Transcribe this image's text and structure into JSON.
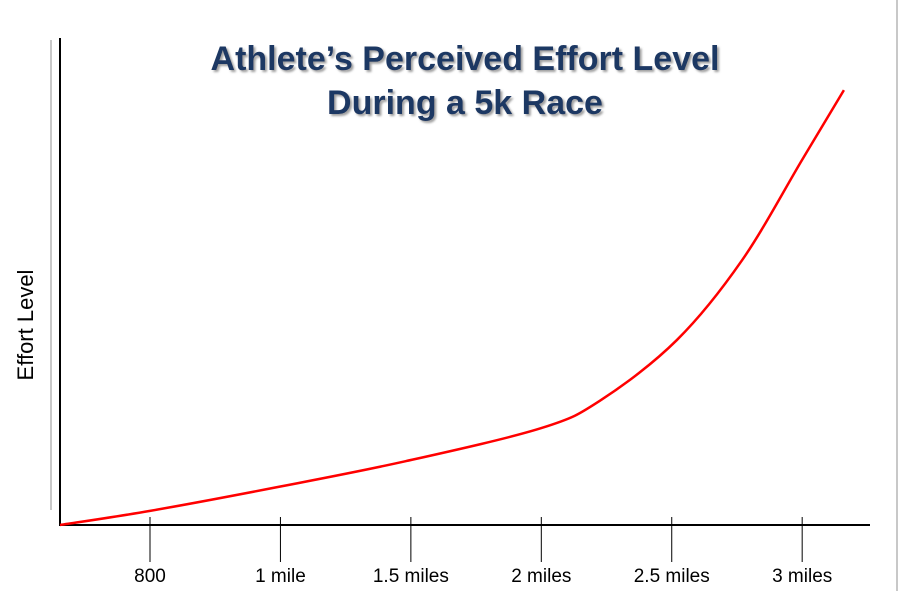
{
  "chart_data": {
    "type": "line",
    "title": "Athlete’s Perceived Effort Level",
    "subtitle": "During a 5k Race",
    "y_label": "Effort Level",
    "x": [
      0.155,
      0.5,
      0.99,
      1.48,
      2.0,
      2.23,
      2.52,
      2.77,
      3.0,
      3.16
    ],
    "series": [
      {
        "color": "#ff0000",
        "values": [
          0,
          2.9,
          7.8,
          13.1,
          19.9,
          25.7,
          38,
          54.4,
          75,
          89.3
        ]
      }
    ],
    "xlim": [
      0.155,
      3.26
    ],
    "ylim": [
      0,
      100
    ],
    "xticks": [
      {
        "value": 0.5,
        "label": "800"
      },
      {
        "value": 1,
        "label": "1 mile"
      },
      {
        "value": 1.5,
        "label": "1.5 miles"
      },
      {
        "value": 2,
        "label": "2 miles"
      },
      {
        "value": 2.5,
        "label": "2.5 miles"
      },
      {
        "value": 3,
        "label": "3 miles"
      }
    ]
  }
}
